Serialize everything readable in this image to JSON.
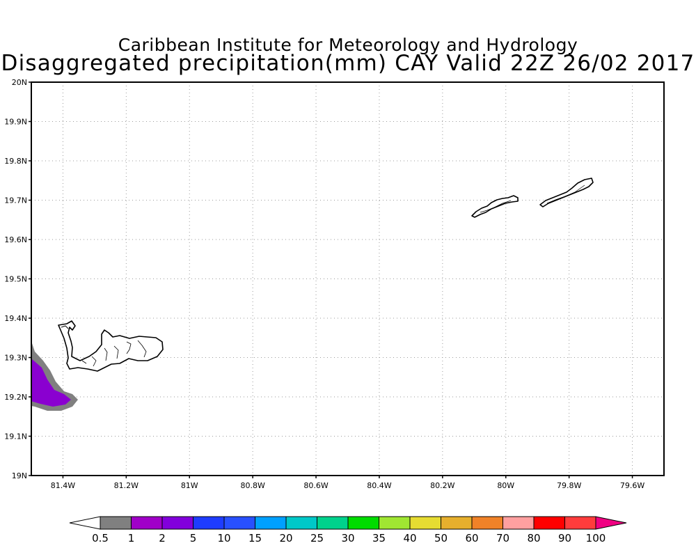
{
  "header": {
    "line1": "Caribbean Institute for Meteorology and Hydrology",
    "line2": "Disaggregated precipitation(mm) CAY Valid 22Z 26/02 2017"
  },
  "map": {
    "lon_range": [
      -81.5,
      -79.5
    ],
    "lat_range": [
      19.0,
      20.0
    ],
    "grid": "dotted",
    "x_ticks": [
      {
        "lon": -81.4,
        "label": "81.4W"
      },
      {
        "lon": -81.2,
        "label": "81.2W"
      },
      {
        "lon": -81.0,
        "label": "81W"
      },
      {
        "lon": -80.8,
        "label": "80.8W"
      },
      {
        "lon": -80.6,
        "label": "80.6W"
      },
      {
        "lon": -80.4,
        "label": "80.4W"
      },
      {
        "lon": -80.2,
        "label": "80.2W"
      },
      {
        "lon": -80.0,
        "label": "80W"
      },
      {
        "lon": -79.8,
        "label": "79.8W"
      },
      {
        "lon": -79.6,
        "label": "79.6W"
      }
    ],
    "y_ticks": [
      {
        "lat": 20.0,
        "label": "20N"
      },
      {
        "lat": 19.9,
        "label": "19.9N"
      },
      {
        "lat": 19.8,
        "label": "19.8N"
      },
      {
        "lat": 19.7,
        "label": "19.7N"
      },
      {
        "lat": 19.6,
        "label": "19.6N"
      },
      {
        "lat": 19.5,
        "label": "19.5N"
      },
      {
        "lat": 19.4,
        "label": "19.4N"
      },
      {
        "lat": 19.3,
        "label": "19.3N"
      },
      {
        "lat": 19.2,
        "label": "19.2N"
      },
      {
        "lat": 19.1,
        "label": "19.1N"
      },
      {
        "lat": 19.0,
        "label": "19N"
      }
    ],
    "precip_colors": {
      "level_0_5": "#808080",
      "level_2": "#8a00d0"
    }
  },
  "colorbar": {
    "labels": [
      "0.5",
      "1",
      "2",
      "5",
      "10",
      "15",
      "20",
      "25",
      "30",
      "35",
      "40",
      "50",
      "60",
      "70",
      "80",
      "90",
      "100"
    ],
    "colors": [
      "#ffffff",
      "#808080",
      "#a000c8",
      "#8200dc",
      "#1e3cff",
      "#2850ff",
      "#00a0ff",
      "#00c8c8",
      "#00d28c",
      "#00dc00",
      "#a0e632",
      "#e6dc32",
      "#e6af2d",
      "#f08228",
      "#ffa0a0",
      "#ff0000",
      "#ff3c3c",
      "#f00082"
    ]
  }
}
